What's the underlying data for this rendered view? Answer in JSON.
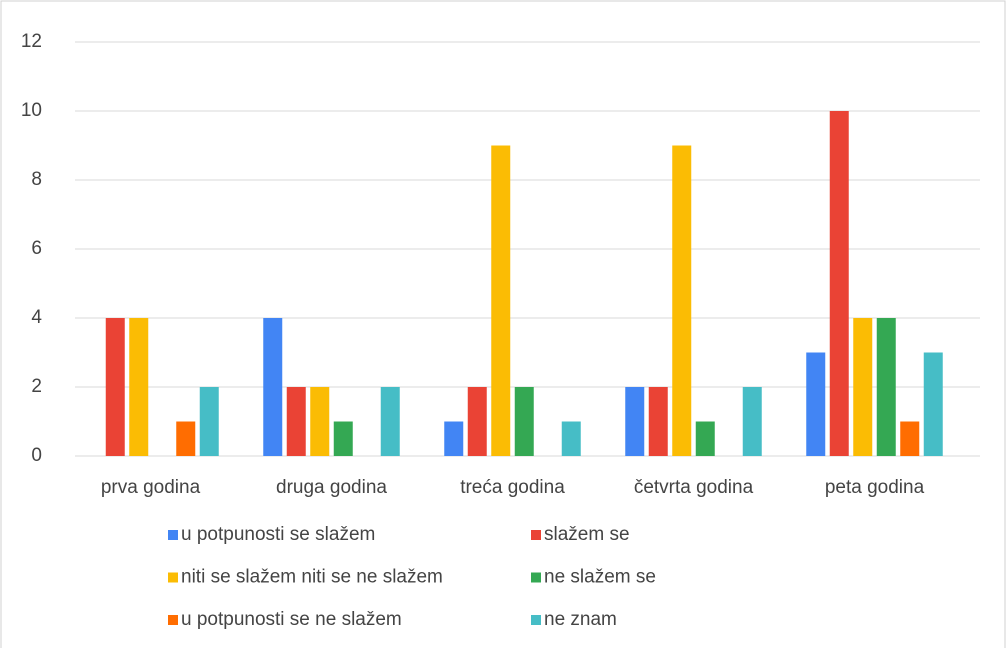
{
  "chart_data": {
    "type": "bar",
    "categories": [
      "prva godina",
      "druga godina",
      "treća godina",
      "četvrta godina",
      "peta godina"
    ],
    "series": [
      {
        "name": "u potpunosti se slažem",
        "color": "#4285f4",
        "values": [
          0,
          4,
          1,
          2,
          3
        ]
      },
      {
        "name": "slažem se",
        "color": "#ea4335",
        "values": [
          4,
          2,
          2,
          2,
          10
        ]
      },
      {
        "name": "niti se slažem niti se ne slažem",
        "color": "#fbbc04",
        "values": [
          4,
          2,
          9,
          9,
          4
        ]
      },
      {
        "name": "ne slažem se",
        "color": "#34a853",
        "values": [
          0,
          1,
          2,
          1,
          4
        ]
      },
      {
        "name": "u potpunosti se ne slažem",
        "color": "#ff6d01",
        "values": [
          1,
          0,
          0,
          0,
          1
        ]
      },
      {
        "name": "ne znam",
        "color": "#46bdc6",
        "values": [
          2,
          2,
          1,
          2,
          3
        ]
      }
    ],
    "ylim": [
      0,
      12
    ],
    "yticks": [
      0,
      2,
      4,
      6,
      8,
      10,
      12
    ],
    "grid": true,
    "legend": "bottom"
  }
}
